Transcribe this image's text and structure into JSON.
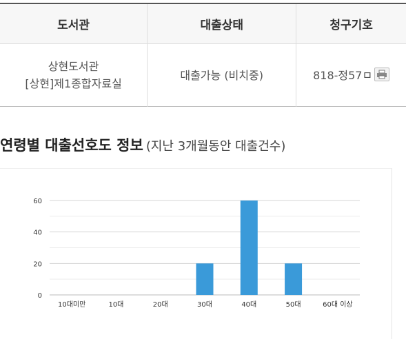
{
  "table": {
    "headers": [
      "도서관",
      "대출상태",
      "청구기호"
    ],
    "row": {
      "library": "상현도서관",
      "location": "[상현]제1종합자료실",
      "status": "대출가능 (비치중)",
      "call_number": "818-정57ㅁ",
      "print_icon": "printer-icon"
    }
  },
  "section": {
    "title": "연령별 대출선호도 정보",
    "subtitle": "(지난 3개월동안 대출건수)"
  },
  "chart_data": {
    "type": "bar",
    "categories": [
      "10대미만",
      "10대",
      "20대",
      "30대",
      "40대",
      "50대",
      "60대 이상"
    ],
    "values": [
      0,
      0,
      0,
      20,
      60,
      20,
      0
    ],
    "yticks": [
      0,
      20,
      40,
      60
    ],
    "ylim": [
      0,
      60
    ],
    "grid": true,
    "bar_color": "#3a9ad9",
    "title": "",
    "xlabel": "",
    "ylabel": ""
  }
}
